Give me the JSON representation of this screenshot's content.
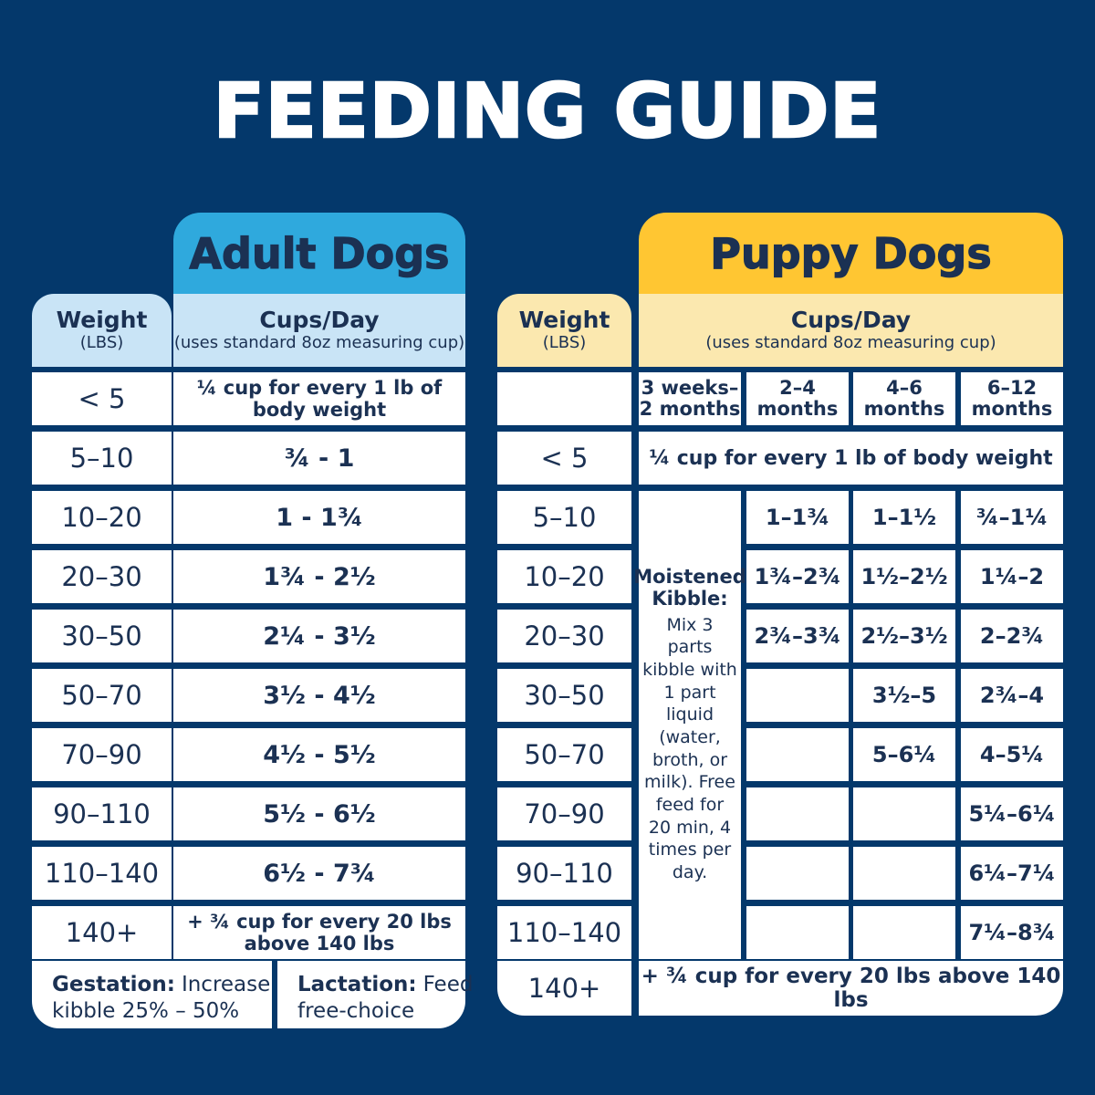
{
  "title": "FEEDING GUIDE",
  "colors": {
    "background": "#04386B",
    "ink": "#1B3153",
    "adult_tab": "#2FA9DD",
    "adult_header": "#C9E4F6",
    "puppy_tab": "#FFC632",
    "puppy_header": "#FBE8AF"
  },
  "adult": {
    "tab": "Adult Dogs",
    "weight_header": {
      "title": "Weight",
      "sub": "(LBS)"
    },
    "cups_header": {
      "title": "Cups/Day",
      "sub": "(uses standard 8oz measuring cup)"
    },
    "rows": [
      {
        "weight": "< 5",
        "cups": "¼ cup for every 1 lb of body weight",
        "small": true
      },
      {
        "weight": "5–10",
        "cups": "¾ - 1"
      },
      {
        "weight": "10–20",
        "cups": "1 - 1¾"
      },
      {
        "weight": "20–30",
        "cups": "1¾ - 2½"
      },
      {
        "weight": "30–50",
        "cups": "2¼ - 3½"
      },
      {
        "weight": "50–70",
        "cups": "3½ - 4½"
      },
      {
        "weight": "70–90",
        "cups": "4½ - 5½"
      },
      {
        "weight": "90–110",
        "cups": "5½ - 6½"
      },
      {
        "weight": "110–140",
        "cups": "6½ - 7¾"
      },
      {
        "weight": "140+",
        "cups": "+ ¾ cup for every 20 lbs above 140 lbs",
        "small": true
      }
    ],
    "notes": [
      {
        "label": "Gestation:",
        "text": "Increase kibble 25% – 50%"
      },
      {
        "label": "Lactation:",
        "text": "Feed free-choice"
      }
    ]
  },
  "puppy": {
    "tab": "Puppy Dogs",
    "weight_header": {
      "title": "Weight",
      "sub": "(LBS)"
    },
    "cups_header": {
      "title": "Cups/Day",
      "sub": "(uses standard 8oz measuring cup)"
    },
    "age_columns": [
      "3 weeks–\n2 months",
      "2–4\nmonths",
      "4–6\nmonths",
      "6–12\nmonths"
    ],
    "under5": {
      "weight": "< 5",
      "text": "¼ cup for every 1 lb of body weight"
    },
    "moistened": {
      "title": "Moistened\nKibble:",
      "body": "Mix 3 parts kibble with 1 part liquid (water, broth, or milk). Free feed for 20 min, 4 times per day."
    },
    "rows": [
      {
        "weight": "5–10",
        "cells": [
          "1–1¾",
          "1–1½",
          "¾–1¼"
        ]
      },
      {
        "weight": "10–20",
        "cells": [
          "1¾–2¾",
          "1½–2½",
          "1¼–2"
        ]
      },
      {
        "weight": "20–30",
        "cells": [
          "2¾–3¾",
          "2½–3½",
          "2–2¾"
        ]
      },
      {
        "weight": "30–50",
        "cells": [
          "",
          "3½–5",
          "2¾–4"
        ]
      },
      {
        "weight": "50–70",
        "cells": [
          "",
          "5–6¼",
          "4–5¼"
        ]
      },
      {
        "weight": "70–90",
        "cells": [
          "",
          "",
          "5¼–6¼"
        ]
      },
      {
        "weight": "90–110",
        "cells": [
          "",
          "",
          "6¼–7¼"
        ]
      },
      {
        "weight": "110–140",
        "cells": [
          "",
          "",
          "7¼–8¾"
        ]
      }
    ],
    "last": {
      "weight": "140+",
      "text": "+ ¾ cup for every 20 lbs above 140 lbs"
    }
  }
}
